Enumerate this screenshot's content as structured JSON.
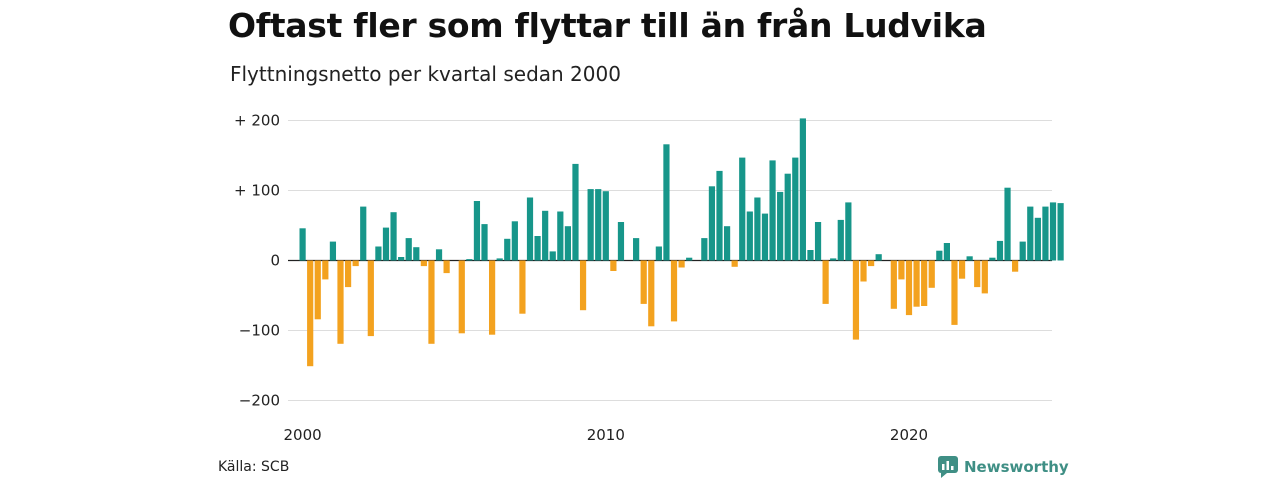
{
  "title": "Oftast fler som flyttar till än från Ludvika",
  "subtitle": "Flyttningsnetto per kvartal sedan 2000",
  "source": "Källa: SCB",
  "brand": "Newsworthy",
  "colors": {
    "positive": "#17968a",
    "negative": "#f3a21f",
    "grid": "#dddddd",
    "zero": "#222222",
    "brand": "#3f8f85"
  },
  "chart_data": {
    "type": "bar",
    "title": "Oftast fler som flyttar till än från Ludvika",
    "subtitle": "Flyttningsnetto per kvartal sedan 2000",
    "ylim": [
      -200,
      200
    ],
    "yticks": [
      200,
      100,
      0,
      -100,
      -200
    ],
    "ytick_labels": [
      "+ 200",
      "+ 100",
      "0",
      "−100",
      "−200"
    ],
    "xtick_labels": [
      "2000",
      "2010",
      "2020"
    ],
    "x_start": "2000 Q1",
    "grid": true,
    "values": [
      46,
      -151,
      -84,
      -27,
      27,
      -119,
      -38,
      -8,
      77,
      -108,
      20,
      47,
      69,
      5,
      32,
      19,
      -8,
      -119,
      16,
      -18,
      0,
      -104,
      2,
      85,
      52,
      -106,
      3,
      31,
      56,
      -76,
      90,
      35,
      71,
      13,
      70,
      49,
      138,
      -71,
      102,
      102,
      99,
      -15,
      55,
      0,
      32,
      -62,
      -94,
      20,
      166,
      -87,
      -10,
      4,
      0,
      32,
      106,
      128,
      49,
      -9,
      147,
      70,
      90,
      67,
      143,
      98,
      124,
      147,
      203,
      15,
      55,
      -62,
      3,
      58,
      83,
      -113,
      -30,
      -8,
      9,
      0,
      -69,
      -27,
      -78,
      -66,
      -65,
      -39,
      14,
      25,
      -92,
      -26,
      6,
      -38,
      -47,
      4,
      28,
      104,
      -16,
      27,
      77,
      61,
      77,
      83,
      82
    ]
  }
}
